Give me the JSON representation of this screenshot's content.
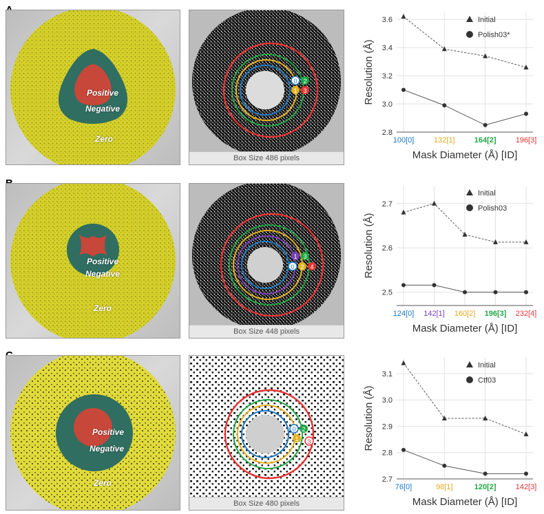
{
  "panels": [
    {
      "letter": "A",
      "mask_labels": {
        "positive": "Positive",
        "negative": "Negative",
        "zero": "Zero"
      },
      "box_caption": "Box Size 486 pixels",
      "ring_ids": [
        "0",
        "2",
        "1",
        "3"
      ],
      "ring_colors": [
        "#1a78c2",
        "#21a645",
        "#e3b11e",
        "#e53333"
      ]
    },
    {
      "letter": "B",
      "mask_labels": {
        "positive": "Positive",
        "negative": "Negative",
        "zero": "Zero"
      },
      "box_caption": "Box Size 448 pixels",
      "ring_ids": [
        "1",
        "3",
        "0",
        "2",
        "4"
      ],
      "ring_colors": [
        "#1a78c2",
        "#7a3fb5",
        "#e3b11e",
        "#21a645",
        "#e53333"
      ]
    },
    {
      "letter": "C",
      "mask_labels": {
        "positive": "Positive",
        "negative": "Negative",
        "zero": "Zero"
      },
      "box_caption": "Box Size 480 pixels",
      "ring_ids": [
        "0",
        "2",
        "1",
        "3"
      ],
      "ring_colors": [
        "#1a78c2",
        "#21a645",
        "#e3b11e",
        "#e53333"
      ]
    }
  ],
  "chart_data": [
    {
      "type": "line",
      "categories": [
        "100[0]",
        "132[1]",
        "164[2]",
        "196[3]"
      ],
      "category_colors": [
        "#1a78c2",
        "#e3a81e",
        "#21a645",
        "#e53333"
      ],
      "series": [
        {
          "name": "Initial",
          "marker": "triangle",
          "dash": true,
          "values": [
            3.62,
            3.39,
            3.34,
            3.26
          ]
        },
        {
          "name": "Polish03*",
          "marker": "circle",
          "dash": false,
          "values": [
            3.1,
            2.99,
            2.85,
            2.93
          ]
        }
      ],
      "xlabel": "Mask Diameter (Å) [ID]",
      "ylabel": "Resolution (Å)",
      "ylim": [
        2.8,
        3.65
      ],
      "yticks": [
        "2.8",
        "3.0",
        "3.2",
        "3.4",
        "3.6"
      ],
      "grid": true,
      "legend": "top-right"
    },
    {
      "type": "line",
      "categories": [
        "124[0]",
        "142[1]",
        "160[2]",
        "196[3]",
        "232[4]"
      ],
      "category_colors": [
        "#1a78c2",
        "#7a3fb5",
        "#e3a81e",
        "#21a645",
        "#e53333"
      ],
      "series": [
        {
          "name": "Initial",
          "marker": "triangle",
          "dash": true,
          "values": [
            2.68,
            2.7,
            2.63,
            2.613,
            2.613
          ]
        },
        {
          "name": "Polish03",
          "marker": "circle",
          "dash": false,
          "values": [
            2.516,
            2.516,
            2.5,
            2.5,
            2.5
          ]
        }
      ],
      "xlabel": "Mask Diameter (Å) [ID]",
      "ylabel": "Resolution (Å)",
      "ylim": [
        2.47,
        2.74
      ],
      "yticks": [
        "2.5",
        "2.6",
        "2.7"
      ],
      "grid": true,
      "legend": "top-right"
    },
    {
      "type": "line",
      "categories": [
        "76[0]",
        "98[1]",
        "120[2]",
        "142[3]"
      ],
      "category_colors": [
        "#1a78c2",
        "#e3a81e",
        "#21a645",
        "#e53333"
      ],
      "series": [
        {
          "name": "Initial",
          "marker": "triangle",
          "dash": true,
          "values": [
            3.14,
            2.93,
            2.93,
            2.87
          ]
        },
        {
          "name": "Ctf03",
          "marker": "circle",
          "dash": false,
          "values": [
            2.81,
            2.75,
            2.72,
            2.72
          ]
        }
      ],
      "xlabel": "Mask Diameter (Å) [ID]",
      "ylabel": "Resolution (Å)",
      "ylim": [
        2.7,
        3.16
      ],
      "yticks": [
        "2.7",
        "2.8",
        "2.9",
        "3.0",
        "3.1"
      ],
      "grid": true,
      "legend": "top-right"
    }
  ]
}
